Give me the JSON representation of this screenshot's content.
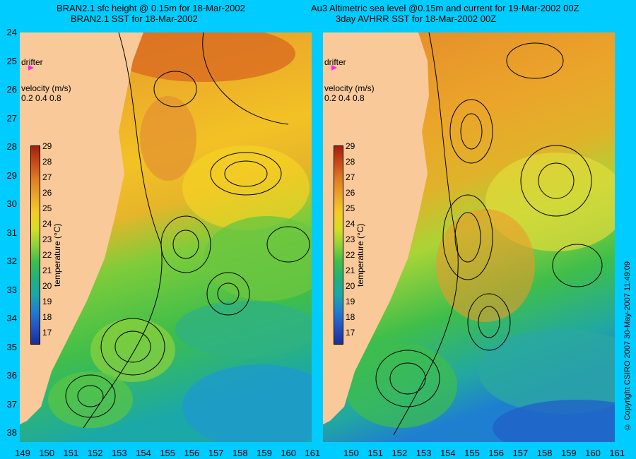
{
  "left_title": {
    "line1": "BRAN2.1 sfc height @ 0.15m for 18-Mar-2002",
    "line2": "BRAN2.1 SST for 18-Mar-2002"
  },
  "right_title": {
    "line1": "Au3 Altimetric sea level  @0.15m and current for 19-Mar-2002 00Z",
    "line2": "3day AVHRR SST for 18-Mar-2002 00Z"
  },
  "lat_labels": [
    "24",
    "25",
    "26",
    "27",
    "28",
    "29",
    "30",
    "31",
    "32",
    "33",
    "34",
    "35",
    "36",
    "37",
    "38"
  ],
  "lon_labels_left": [
    "149",
    "150",
    "151",
    "152",
    "153",
    "154",
    "155",
    "156",
    "157",
    "158",
    "159",
    "160",
    "161"
  ],
  "lon_labels_right": [
    "150",
    "151",
    "152",
    "153",
    "154",
    "155",
    "156",
    "157",
    "158",
    "159",
    "160",
    "161"
  ],
  "drifter_label": "drifter",
  "velocity": {
    "title": "velocity (m/s)",
    "scale": "0.2 0.4 0.8"
  },
  "colorbar": {
    "title": "temperature (°C)",
    "ticks": [
      "29",
      "28",
      "27",
      "26",
      "25",
      "24",
      "23",
      "22",
      "21",
      "20",
      "19",
      "18",
      "17"
    ],
    "colors": [
      "#a3200c",
      "#c8491a",
      "#df7c22",
      "#eba52a",
      "#f5cb25",
      "#d8dd22",
      "#8fd23a",
      "#3fbe4a",
      "#22b07a",
      "#1aa8a8",
      "#1e7fd0",
      "#2452c0",
      "#1c2c9a"
    ]
  },
  "copyright": "© Copyright CSIRO 2007   30-May-2007 11:49:09"
}
